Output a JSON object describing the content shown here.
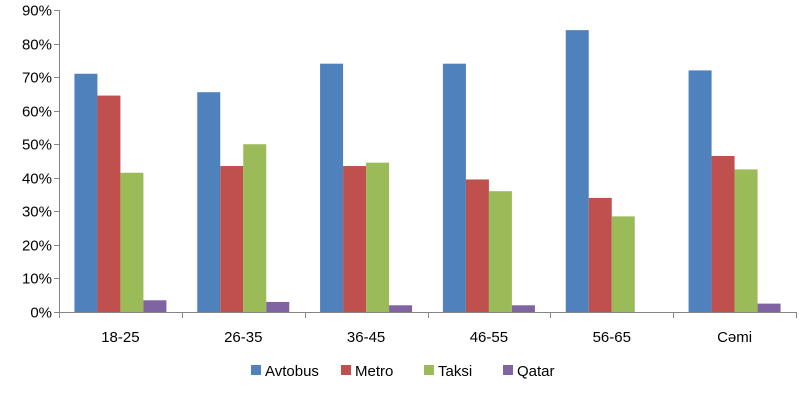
{
  "chart_data": {
    "type": "bar",
    "categories": [
      "18-25",
      "26-35",
      "36-45",
      "46-55",
      "56-65",
      "Cəmi"
    ],
    "y_ticks": [
      "0%",
      "10%",
      "20%",
      "30%",
      "40%",
      "50%",
      "60%",
      "70%",
      "80%",
      "90%"
    ],
    "ylim": [
      0,
      90
    ],
    "y_unit": "%",
    "grid": false,
    "legend_position": "bottom",
    "series": [
      {
        "name": "Avtobus",
        "color": "#4F81BD",
        "values": [
          71,
          65.5,
          74,
          74,
          84,
          72
        ]
      },
      {
        "name": "Metro",
        "color": "#C0504D",
        "values": [
          64.5,
          43.5,
          43.5,
          39.5,
          34,
          46.5
        ]
      },
      {
        "name": "Taksi",
        "color": "#9BBB59",
        "values": [
          41.5,
          50,
          44.5,
          36,
          28.5,
          42.5
        ]
      },
      {
        "name": "Qatar",
        "color": "#8064A2",
        "values": [
          3.5,
          3,
          2,
          2,
          0,
          2.5
        ]
      }
    ]
  }
}
